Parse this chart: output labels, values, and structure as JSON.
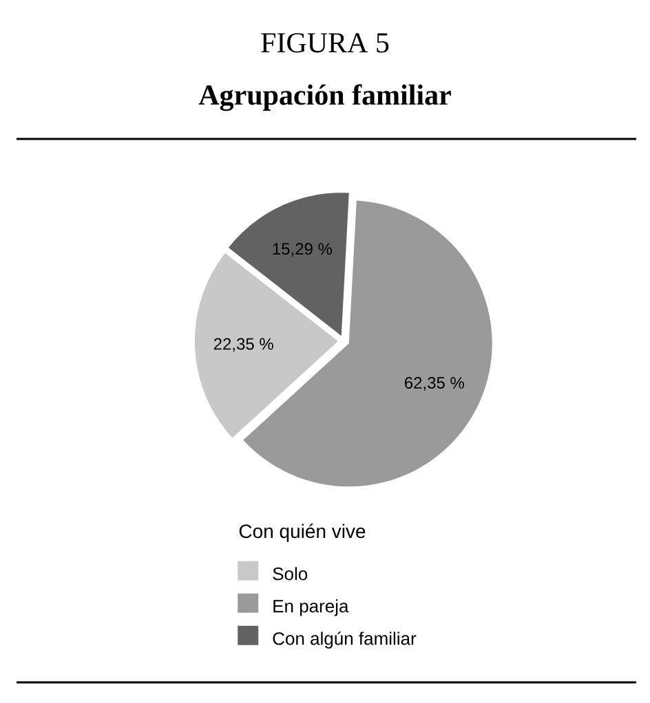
{
  "chart_data": {
    "type": "pie",
    "title": "FIGURA 5",
    "subtitle": "Agrupación familiar",
    "legend_title": "Con quién vive",
    "categories": [
      "Solo",
      "En pareja",
      "Con algún familiar"
    ],
    "values": [
      22.35,
      62.35,
      15.29
    ],
    "colors": [
      "#c8c8c8",
      "#9a9a9a",
      "#626262"
    ],
    "value_labels": [
      "22,35 %",
      "62,35 %",
      "15,29 %"
    ],
    "legend": "bottom"
  }
}
